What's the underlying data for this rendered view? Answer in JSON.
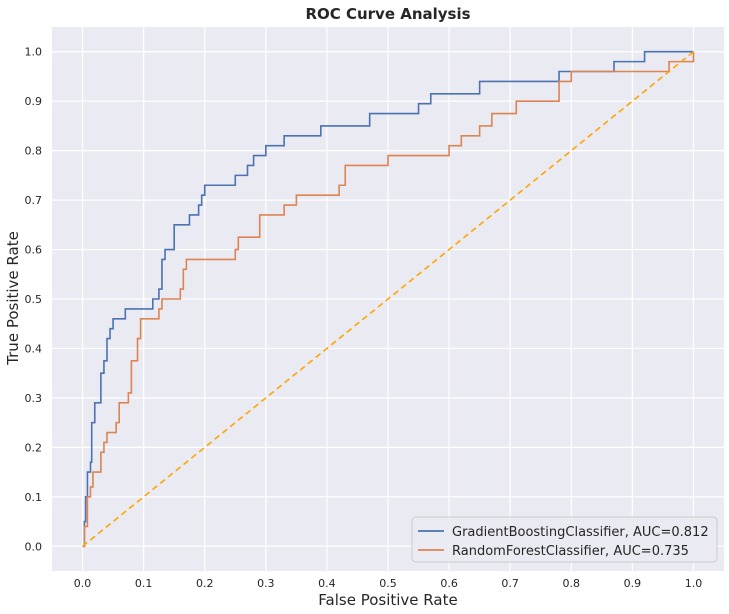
{
  "chart_data": {
    "type": "line",
    "title": "ROC Curve Analysis",
    "xlabel": "False Positive Rate",
    "ylabel": "True Positive Rate",
    "xlim": [
      -0.05,
      1.05
    ],
    "ylim": [
      -0.05,
      1.05
    ],
    "xticks": [
      "0.0",
      "0.1",
      "0.2",
      "0.3",
      "0.4",
      "0.5",
      "0.6",
      "0.7",
      "0.8",
      "0.9",
      "1.0"
    ],
    "yticks": [
      "0.0",
      "0.1",
      "0.2",
      "0.3",
      "0.4",
      "0.5",
      "0.6",
      "0.7",
      "0.8",
      "0.9",
      "1.0"
    ],
    "grid": true,
    "legend_position": "lower-right",
    "background": "#eaeaf2",
    "series": [
      {
        "name": "GradientBoostingClassifier, AUC=0.812",
        "color": "#4c72b0",
        "step": true,
        "x": [
          0,
          0.003,
          0.005,
          0.008,
          0.01,
          0.013,
          0.015,
          0.018,
          0.02,
          0.023,
          0.025,
          0.03,
          0.035,
          0.04,
          0.042,
          0.045,
          0.05,
          0.055,
          0.06,
          0.07,
          0.075,
          0.08,
          0.09,
          0.1,
          0.115,
          0.12,
          0.125,
          0.13,
          0.135,
          0.14,
          0.15,
          0.16,
          0.175,
          0.18,
          0.19,
          0.195,
          0.2,
          0.21,
          0.215,
          0.22,
          0.25,
          0.26,
          0.27,
          0.28,
          0.3,
          0.31,
          0.33,
          0.35,
          0.38,
          0.39,
          0.45,
          0.47,
          0.5,
          0.55,
          0.57,
          0.6,
          0.65,
          0.75,
          0.78,
          0.8,
          0.85,
          0.87,
          0.9,
          0.92,
          0.95,
          1.0
        ],
        "y": [
          0,
          0.05,
          0.1,
          0.15,
          0.15,
          0.17,
          0.25,
          0.25,
          0.29,
          0.29,
          0.29,
          0.35,
          0.375,
          0.42,
          0.42,
          0.44,
          0.46,
          0.46,
          0.46,
          0.48,
          0.48,
          0.48,
          0.48,
          0.48,
          0.5,
          0.5,
          0.52,
          0.58,
          0.6,
          0.6,
          0.65,
          0.65,
          0.67,
          0.67,
          0.69,
          0.71,
          0.73,
          0.73,
          0.73,
          0.73,
          0.75,
          0.75,
          0.77,
          0.79,
          0.81,
          0.81,
          0.83,
          0.83,
          0.83,
          0.85,
          0.85,
          0.875,
          0.875,
          0.895,
          0.915,
          0.915,
          0.94,
          0.94,
          0.96,
          0.96,
          0.96,
          0.98,
          0.98,
          1.0,
          1.0,
          1.0
        ]
      },
      {
        "name": "RandomForestClassifier, AUC=0.735",
        "color": "#dd8452",
        "step": true,
        "x": [
          0,
          0.003,
          0.008,
          0.013,
          0.017,
          0.02,
          0.03,
          0.035,
          0.04,
          0.045,
          0.055,
          0.06,
          0.065,
          0.07,
          0.075,
          0.08,
          0.09,
          0.095,
          0.1,
          0.125,
          0.13,
          0.14,
          0.16,
          0.165,
          0.17,
          0.175,
          0.18,
          0.25,
          0.255,
          0.26,
          0.28,
          0.29,
          0.31,
          0.33,
          0.35,
          0.38,
          0.41,
          0.42,
          0.43,
          0.45,
          0.5,
          0.55,
          0.6,
          0.62,
          0.65,
          0.67,
          0.7,
          0.71,
          0.72,
          0.74,
          0.78,
          0.8,
          0.85,
          0.9,
          0.96,
          1.0
        ],
        "y": [
          0,
          0.04,
          0.1,
          0.12,
          0.15,
          0.15,
          0.19,
          0.21,
          0.23,
          0.23,
          0.25,
          0.29,
          0.29,
          0.29,
          0.31,
          0.375,
          0.42,
          0.46,
          0.46,
          0.48,
          0.5,
          0.5,
          0.52,
          0.56,
          0.58,
          0.58,
          0.58,
          0.6,
          0.625,
          0.625,
          0.625,
          0.67,
          0.67,
          0.69,
          0.71,
          0.71,
          0.71,
          0.73,
          0.77,
          0.77,
          0.79,
          0.79,
          0.81,
          0.83,
          0.85,
          0.875,
          0.875,
          0.9,
          0.9,
          0.9,
          0.94,
          0.96,
          0.96,
          0.96,
          0.98,
          1.0
        ]
      },
      {
        "name": "",
        "color": "#ffa500",
        "dashed": true,
        "x": [
          0,
          1
        ],
        "y": [
          0,
          1
        ]
      }
    ]
  }
}
